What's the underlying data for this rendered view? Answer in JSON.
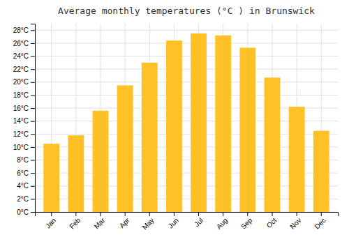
{
  "chart_data": {
    "type": "bar",
    "title": "Average monthly temperatures (°C ) in Brunswick",
    "categories": [
      "Jan",
      "Feb",
      "Mar",
      "Apr",
      "May",
      "Jun",
      "Jul",
      "Aug",
      "Sep",
      "Oct",
      "Nov",
      "Dec"
    ],
    "values": [
      10.5,
      11.8,
      15.6,
      19.5,
      23.0,
      26.4,
      27.5,
      27.2,
      25.3,
      20.7,
      16.2,
      12.5
    ],
    "color": "#FFC125",
    "ylim": [
      0,
      29
    ],
    "yticks": [
      {
        "value": 0,
        "label": "0°C"
      },
      {
        "value": 2,
        "label": "2°C"
      },
      {
        "value": 4,
        "label": "4°C"
      },
      {
        "value": 6,
        "label": "6°C"
      },
      {
        "value": 8,
        "label": "8°C"
      },
      {
        "value": 10,
        "label": "10°C"
      },
      {
        "value": 12,
        "label": "12°C"
      },
      {
        "value": 14,
        "label": "14°C"
      },
      {
        "value": 16,
        "label": "16°C"
      },
      {
        "value": 18,
        "label": "18°C"
      },
      {
        "value": 20,
        "label": "20°C"
      },
      {
        "value": 22,
        "label": "22°C"
      },
      {
        "value": 24,
        "label": "24°C"
      },
      {
        "value": 26,
        "label": "26°C"
      },
      {
        "value": 28,
        "label": "28°C"
      }
    ],
    "grid": true
  }
}
